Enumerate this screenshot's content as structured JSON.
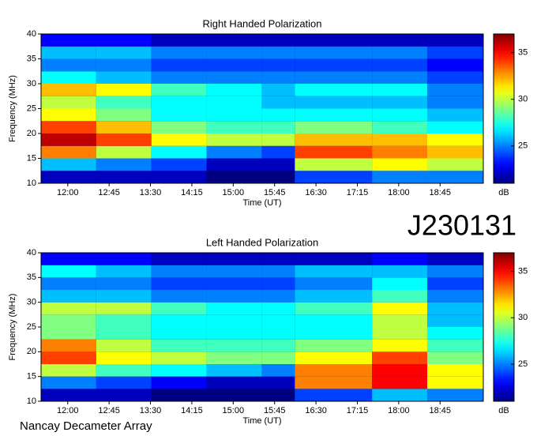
{
  "observation_id": "J230131",
  "footer": "Nancay Decameter Array",
  "chart_data": [
    {
      "type": "heatmap",
      "title": "Right Handed Polarization",
      "xlabel": "Time (UT)",
      "ylabel": "Frequency (MHz)",
      "colormap": "jet",
      "clabel": "dB",
      "clim": [
        21,
        37
      ],
      "cticks": [
        25,
        30,
        35
      ],
      "xlim": [
        691,
        1172
      ],
      "xticks": [
        {
          "value": 720,
          "label": "12:00"
        },
        {
          "value": 765,
          "label": "12:45"
        },
        {
          "value": 810,
          "label": "13:30"
        },
        {
          "value": 855,
          "label": "14:15"
        },
        {
          "value": 900,
          "label": "15:00"
        },
        {
          "value": 945,
          "label": "15:45"
        },
        {
          "value": 990,
          "label": "16:30"
        },
        {
          "value": 1035,
          "label": "17:15"
        },
        {
          "value": 1080,
          "label": "18:00"
        },
        {
          "value": 1125,
          "label": "18:45"
        }
      ],
      "ylim": [
        10,
        40
      ],
      "yticks": [
        10,
        15,
        20,
        25,
        30,
        35,
        40
      ],
      "x_bins": [
        691,
        751,
        811,
        871,
        931,
        967,
        1051,
        1111,
        1172
      ],
      "y_bins": [
        10,
        12.5,
        15,
        17.5,
        20,
        22.5,
        25,
        27.5,
        30,
        32.5,
        35,
        37.5,
        40
      ],
      "values": [
        [
          22,
          22,
          22,
          21,
          21,
          24,
          25,
          25
        ],
        [
          26,
          25,
          24,
          22,
          22,
          30,
          31,
          30
        ],
        [
          33,
          30,
          27,
          25,
          24,
          34,
          33,
          32
        ],
        [
          36,
          34,
          31,
          30,
          30,
          32,
          32,
          31
        ],
        [
          34,
          32,
          29,
          28,
          28,
          29,
          28,
          27
        ],
        [
          31,
          29,
          27,
          27,
          27,
          27,
          27,
          26
        ],
        [
          30,
          28,
          27,
          27,
          26,
          26,
          26,
          25
        ],
        [
          32,
          31,
          28,
          27,
          26,
          27,
          27,
          25
        ],
        [
          27,
          26,
          25,
          25,
          25,
          25,
          25,
          24
        ],
        [
          25,
          25,
          24,
          24,
          24,
          24,
          24,
          23
        ],
        [
          26,
          26,
          25,
          25,
          25,
          25,
          25,
          24
        ],
        [
          23,
          23,
          22,
          22,
          22,
          22,
          22,
          22
        ]
      ]
    },
    {
      "type": "heatmap",
      "title": "Left Handed Polarization",
      "xlabel": "Time (UT)",
      "ylabel": "Frequency (MHz)",
      "colormap": "jet",
      "clabel": "dB",
      "clim": [
        21,
        37
      ],
      "cticks": [
        25,
        30,
        35
      ],
      "xlim": [
        691,
        1172
      ],
      "xticks": [
        {
          "value": 720,
          "label": "12:00"
        },
        {
          "value": 765,
          "label": "12:45"
        },
        {
          "value": 810,
          "label": "13:30"
        },
        {
          "value": 855,
          "label": "14:15"
        },
        {
          "value": 900,
          "label": "15:00"
        },
        {
          "value": 945,
          "label": "15:45"
        },
        {
          "value": 990,
          "label": "16:30"
        },
        {
          "value": 1035,
          "label": "17:15"
        },
        {
          "value": 1080,
          "label": "18:00"
        },
        {
          "value": 1125,
          "label": "18:45"
        }
      ],
      "ylim": [
        10,
        40
      ],
      "yticks": [
        10,
        15,
        20,
        25,
        30,
        35,
        40
      ],
      "x_bins": [
        691,
        751,
        811,
        871,
        931,
        967,
        1051,
        1111,
        1172
      ],
      "y_bins": [
        10,
        12.5,
        15,
        17.5,
        20,
        22.5,
        25,
        27.5,
        30,
        32.5,
        35,
        37.5,
        40
      ],
      "values": [
        [
          22,
          22,
          21,
          21,
          21,
          24,
          26,
          25
        ],
        [
          25,
          24,
          23,
          22,
          22,
          33,
          35,
          31
        ],
        [
          30,
          28,
          27,
          26,
          25,
          33,
          35,
          31
        ],
        [
          34,
          31,
          30,
          29,
          29,
          31,
          34,
          29
        ],
        [
          33,
          30,
          28,
          28,
          28,
          29,
          31,
          28
        ],
        [
          29,
          28,
          27,
          27,
          27,
          27,
          30,
          27
        ],
        [
          29,
          28,
          27,
          27,
          27,
          27,
          30,
          26
        ],
        [
          30,
          30,
          28,
          27,
          27,
          28,
          31,
          26
        ],
        [
          26,
          26,
          25,
          25,
          25,
          26,
          28,
          25
        ],
        [
          25,
          25,
          24,
          24,
          24,
          25,
          27,
          24
        ],
        [
          27,
          26,
          25,
          25,
          25,
          26,
          26,
          25
        ],
        [
          23,
          23,
          22,
          22,
          22,
          22,
          23,
          22
        ]
      ]
    }
  ]
}
